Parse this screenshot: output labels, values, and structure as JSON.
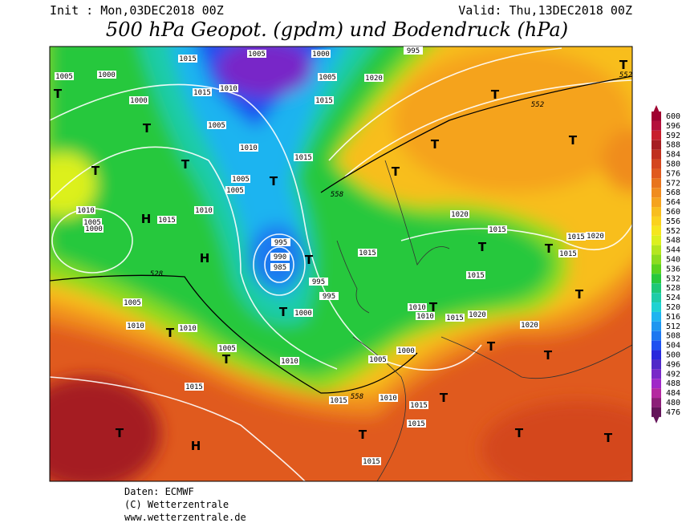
{
  "header": {
    "init": "Init : Mon,03DEC2018 00Z",
    "valid": "Valid: Thu,13DEC2018 00Z",
    "title": "500 hPa Geopot. (gpdm) und Bodendruck (hPa)"
  },
  "colorbar": {
    "labels": [
      600,
      596,
      592,
      588,
      584,
      580,
      576,
      572,
      568,
      564,
      560,
      556,
      552,
      548,
      544,
      540,
      536,
      532,
      528,
      524,
      520,
      516,
      512,
      508,
      504,
      500,
      496,
      492,
      488,
      484,
      480,
      476
    ],
    "colors": [
      "#a00030",
      "#b4103c",
      "#c81e2d",
      "#a51e22",
      "#c0301e",
      "#d4461e",
      "#e05a1e",
      "#e8741c",
      "#f08c1e",
      "#f5a31e",
      "#f8be1e",
      "#fad21e",
      "#f5e61e",
      "#dcf01e",
      "#b4e61e",
      "#8cdc1e",
      "#5ad21e",
      "#28c83c",
      "#1ec878",
      "#1ecca8",
      "#1ed2d2",
      "#1eb4f0",
      "#1e96f0",
      "#1e78f0",
      "#1e50f0",
      "#2828dc",
      "#5028c8",
      "#7828c8",
      "#a028c8",
      "#b428a0",
      "#8c1e78",
      "#64145a"
    ]
  },
  "map": {
    "isobar_labels": [
      "1015",
      "1005",
      "1000",
      "995",
      "1005",
      "1000",
      "1020",
      "1005",
      "1010",
      "1015",
      "1015",
      "1000",
      "1005",
      "1010",
      "1015",
      "1005",
      "1005",
      "1010",
      "1015",
      "1010",
      "1005",
      "1000",
      "995",
      "990",
      "985",
      "995",
      "995",
      "1000",
      "1015",
      "1015",
      "1020",
      "1015",
      "1020",
      "1015",
      "1015",
      "1010",
      "1010",
      "1015",
      "1020",
      "1020",
      "1005",
      "1010",
      "1010",
      "1005",
      "1010",
      "1005",
      "1000",
      "1015",
      "1015",
      "1010",
      "1015",
      "1015",
      "1015"
    ],
    "centers": [
      "T",
      "T",
      "T",
      "T",
      "T",
      "T",
      "T",
      "T",
      "T",
      "T",
      "T",
      "T",
      "T",
      "T",
      "T",
      "T",
      "T",
      "T",
      "T",
      "T",
      "T",
      "T",
      "T",
      "T",
      "T",
      "H",
      "H",
      "H"
    ],
    "geopot_labels": [
      "552",
      "552",
      "558",
      "558",
      "528"
    ]
  },
  "footer": {
    "source": "Daten: ECMWF",
    "copyright": "(C) Wetterzentrale",
    "url": "www.wetterzentrale.de"
  }
}
